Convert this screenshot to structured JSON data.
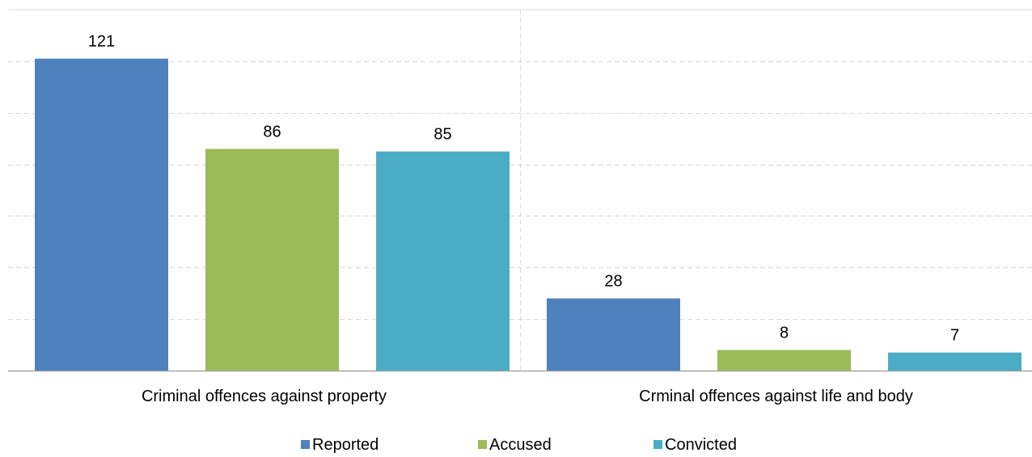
{
  "chart_data": {
    "type": "bar",
    "categories": [
      "Criminal offences against property",
      "Crminal offences against life and body"
    ],
    "series": [
      {
        "name": "Reported",
        "values": [
          121,
          28
        ],
        "color": "#4F81BD"
      },
      {
        "name": "Accused",
        "values": [
          86,
          8
        ],
        "color": "#9BBB59"
      },
      {
        "name": "Convicted",
        "values": [
          85,
          7
        ],
        "color": "#4BACC6"
      }
    ],
    "ylim": [
      0,
      140
    ],
    "grid": true,
    "legend": "bottom",
    "data_labels": true
  }
}
